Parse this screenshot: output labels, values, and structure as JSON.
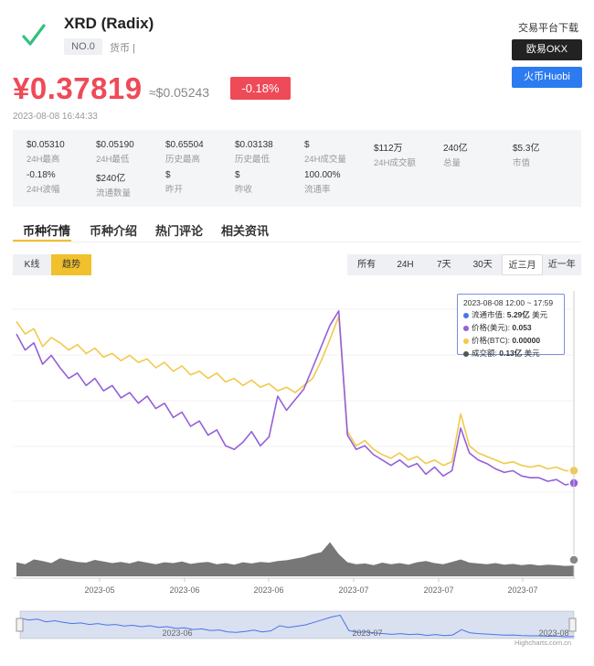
{
  "header": {
    "coin_name": "XRD (Radix)",
    "rank": "NO.0",
    "coin_type": "货币 |",
    "download_title": "交易平台下载",
    "okx_label": "欧易OKX",
    "huobi_label": "火币Huobi",
    "price": "¥0.37819",
    "price_usd": "≈$0.05243",
    "change": "-0.18%",
    "timestamp": "2023-08-08 16:44:33",
    "colors": {
      "price": "#ee4a58",
      "okx": "#222222",
      "huobi": "#2d7bf0",
      "accent": "#f0c12c"
    }
  },
  "stats": [
    {
      "value": "$0.05310",
      "label": "24H最高"
    },
    {
      "value": "$0.05190",
      "label": "24H最低"
    },
    {
      "value": "$0.65504",
      "label": "历史最高"
    },
    {
      "value": "$0.03138",
      "label": "历史最低"
    },
    {
      "value": "$",
      "label": "24H成交量"
    },
    {
      "value": "$112万",
      "label": "24H成交额"
    },
    {
      "value": "240亿",
      "label": "总量"
    },
    {
      "value": "$5.3亿",
      "label": "市值"
    },
    {
      "value": "-0.18%",
      "label": "24H波幅"
    },
    {
      "value": "$240亿",
      "label": "流通数量"
    },
    {
      "value": "$",
      "label": "昨开"
    },
    {
      "value": "$",
      "label": "昨收"
    },
    {
      "value": "100.00%",
      "label": "流通率"
    }
  ],
  "tabs": [
    "币种行情",
    "币种介绍",
    "热门评论",
    "相关资讯"
  ],
  "chart_modes": [
    "K线",
    "趋势"
  ],
  "ranges": [
    "所有",
    "24H",
    "7天",
    "30天",
    "近三月",
    "近一年"
  ],
  "active_range": "近三月",
  "tooltip": {
    "title": "2023-08-08 12:00 ~ 17:59",
    "rows": [
      {
        "label": "流通市值: ",
        "value": "5.29亿",
        "unit": " 美元",
        "color": "#4a74e8"
      },
      {
        "label": "价格(美元): ",
        "value": "0.053",
        "unit": "",
        "color": "#9460d8"
      },
      {
        "label": "价格(BTC): ",
        "value": "0.00000",
        "unit": "",
        "color": "#f2c94c"
      },
      {
        "label": "成交额: ",
        "value": "0.13亿",
        "unit": " 美元",
        "color": "#555555"
      }
    ]
  },
  "chart_data": {
    "type": "line",
    "x_ticks": [
      "2023-05",
      "2023-06",
      "2023-06",
      "2023-07",
      "2023-07",
      "2023-07"
    ],
    "navigator_ticks": [
      "2023-06",
      "2023-07",
      "2023-08"
    ],
    "series": [
      {
        "name": "价格(BTC)",
        "color": "#f2c94c",
        "values": [
          0.92,
          0.85,
          0.88,
          0.78,
          0.83,
          0.8,
          0.76,
          0.79,
          0.74,
          0.77,
          0.72,
          0.74,
          0.7,
          0.73,
          0.69,
          0.71,
          0.66,
          0.69,
          0.64,
          0.67,
          0.62,
          0.64,
          0.6,
          0.63,
          0.58,
          0.6,
          0.56,
          0.59,
          0.55,
          0.57,
          0.53,
          0.55,
          0.52,
          0.56,
          0.6,
          0.7,
          0.82,
          0.95,
          0.3,
          0.22,
          0.25,
          0.2,
          0.17,
          0.15,
          0.18,
          0.14,
          0.16,
          0.12,
          0.14,
          0.11,
          0.13,
          0.4,
          0.22,
          0.18,
          0.16,
          0.14,
          0.12,
          0.13,
          0.11,
          0.1,
          0.11,
          0.09,
          0.1,
          0.08,
          0.08
        ]
      },
      {
        "name": "价格(美元)",
        "color": "#9460d8",
        "values": [
          0.85,
          0.76,
          0.8,
          0.68,
          0.73,
          0.66,
          0.6,
          0.63,
          0.56,
          0.6,
          0.53,
          0.56,
          0.49,
          0.52,
          0.46,
          0.5,
          0.43,
          0.46,
          0.38,
          0.41,
          0.33,
          0.36,
          0.28,
          0.31,
          0.22,
          0.2,
          0.24,
          0.3,
          0.22,
          0.27,
          0.5,
          0.42,
          0.48,
          0.54,
          0.66,
          0.78,
          0.9,
          0.98,
          0.28,
          0.2,
          0.22,
          0.17,
          0.14,
          0.11,
          0.14,
          0.1,
          0.12,
          0.06,
          0.1,
          0.05,
          0.08,
          0.32,
          0.18,
          0.14,
          0.12,
          0.09,
          0.07,
          0.08,
          0.05,
          0.04,
          0.04,
          0.02,
          0.03,
          0.0,
          0.01
        ]
      },
      {
        "name": "成交额",
        "color": "#777777",
        "values": [
          0.35,
          0.3,
          0.42,
          0.38,
          0.33,
          0.45,
          0.4,
          0.36,
          0.34,
          0.41,
          0.37,
          0.33,
          0.36,
          0.32,
          0.38,
          0.34,
          0.3,
          0.35,
          0.33,
          0.37,
          0.31,
          0.34,
          0.36,
          0.3,
          0.33,
          0.29,
          0.35,
          0.32,
          0.36,
          0.34,
          0.38,
          0.4,
          0.44,
          0.48,
          0.55,
          0.6,
          0.85,
          0.55,
          0.35,
          0.3,
          0.32,
          0.28,
          0.34,
          0.3,
          0.33,
          0.29,
          0.35,
          0.38,
          0.33,
          0.3,
          0.36,
          0.42,
          0.34,
          0.32,
          0.3,
          0.33,
          0.29,
          0.31,
          0.28,
          0.3,
          0.27,
          0.29,
          0.28,
          0.26,
          0.27
        ]
      }
    ],
    "legend": "tooltip"
  },
  "credit": "Highcharts.com.cn"
}
